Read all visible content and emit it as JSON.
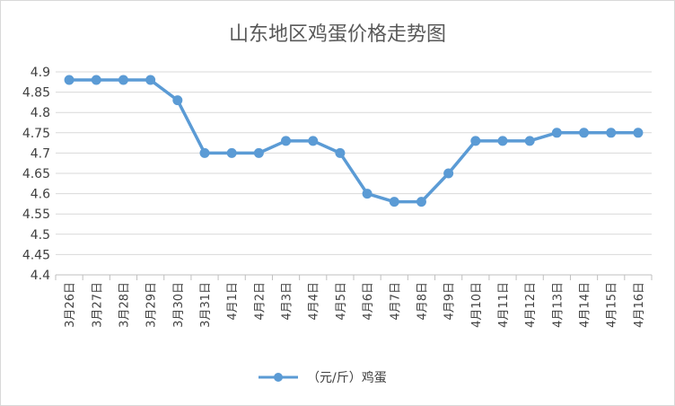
{
  "chart_data": {
    "type": "line",
    "title": "山东地区鸡蛋价格走势图",
    "xlabel": "",
    "ylabel": "",
    "categories": [
      "3月26日",
      "3月27日",
      "3月28日",
      "3月29日",
      "3月30日",
      "3月31日",
      "4月1日",
      "4月2日",
      "4月3日",
      "4月4日",
      "4月5日",
      "4月6日",
      "4月7日",
      "4月8日",
      "4月9日",
      "4月10日",
      "4月11日",
      "4月12日",
      "4月13日",
      "4月14日",
      "4月15日",
      "4月16日"
    ],
    "series": [
      {
        "name": "（元/斤）鸡蛋",
        "values": [
          4.88,
          4.88,
          4.88,
          4.88,
          4.83,
          4.7,
          4.7,
          4.7,
          4.73,
          4.73,
          4.7,
          4.6,
          4.58,
          4.58,
          4.65,
          4.73,
          4.73,
          4.73,
          4.75,
          4.75,
          4.75,
          4.75
        ]
      }
    ],
    "ylim": [
      4.4,
      4.9
    ],
    "yticks": [
      "4.4",
      "4.45",
      "4.5",
      "4.55",
      "4.6",
      "4.65",
      "4.7",
      "4.75",
      "4.8",
      "4.85",
      "4.9"
    ],
    "grid": true,
    "legend_position": "bottom",
    "colors": {
      "line": "#5b9bd5",
      "grid": "#d9d9d9",
      "axis": "#bfbfbf"
    }
  }
}
